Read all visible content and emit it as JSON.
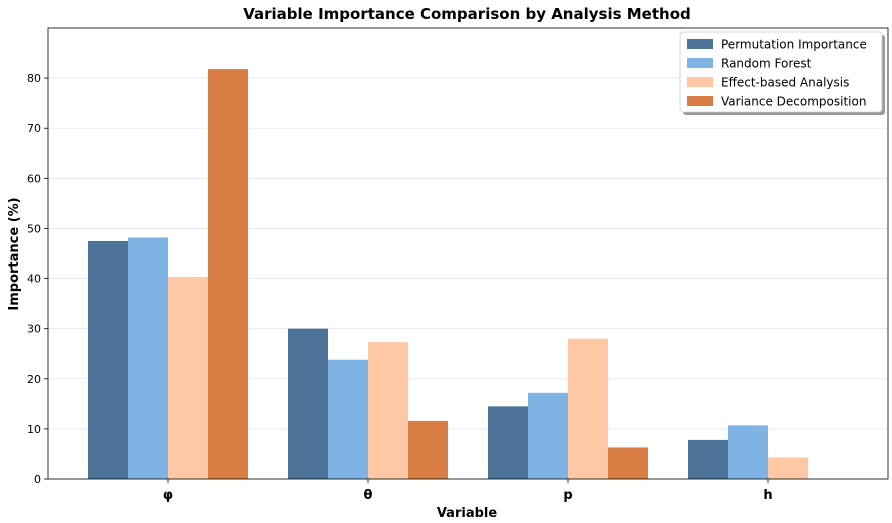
{
  "chart_data": {
    "type": "bar",
    "title": "Variable Importance Comparison by Analysis Method",
    "xlabel": "Variable",
    "ylabel": "Importance (%)",
    "categories": [
      "φ",
      "θ",
      "p",
      "h"
    ],
    "ylim": [
      0,
      90
    ],
    "yticks": [
      0,
      10,
      20,
      30,
      40,
      50,
      60,
      70,
      80
    ],
    "grid": true,
    "legend_position": "top-right",
    "series": [
      {
        "name": "Permutation Importance",
        "color": "#4e7398",
        "values": [
          47.5,
          30.0,
          14.5,
          7.8
        ]
      },
      {
        "name": "Random Forest",
        "color": "#7fb3e3",
        "values": [
          48.2,
          23.8,
          17.2,
          10.7
        ]
      },
      {
        "name": "Effect-based Analysis",
        "color": "#fdc8a3",
        "values": [
          40.3,
          27.3,
          28.0,
          4.3
        ]
      },
      {
        "name": "Variance Decomposition",
        "color": "#d87d44",
        "values": [
          81.8,
          11.6,
          6.3,
          0.0
        ]
      }
    ]
  }
}
